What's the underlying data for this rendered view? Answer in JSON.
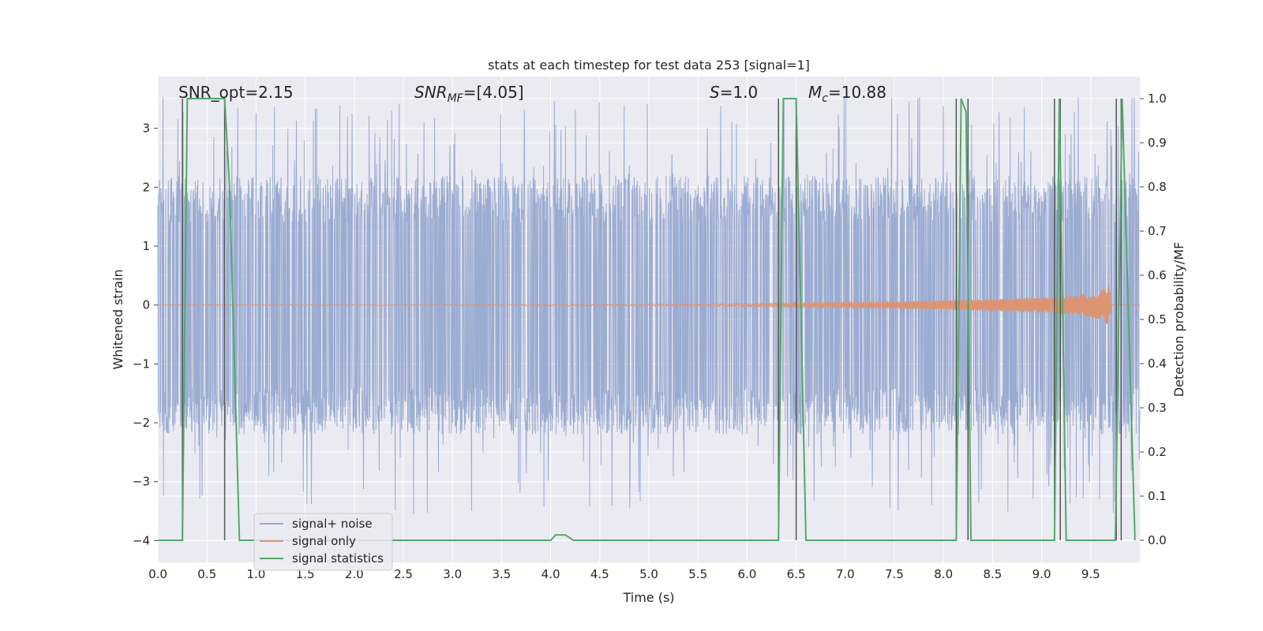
{
  "chart_data": {
    "type": "line",
    "title": "stats at each timestep for test data 253 [signal=1]",
    "xlabel": "Time (s)",
    "ylabel": "Whitened strain",
    "ylabel_right": "Detection probability/MF",
    "xlim": [
      0.0,
      10.0
    ],
    "ylim": [
      -4.37,
      3.88
    ],
    "ylim_right": [
      -0.05,
      1.05
    ],
    "x_ticks": [
      "0.0",
      "0.5",
      "1.0",
      "1.5",
      "2.0",
      "2.5",
      "3.0",
      "3.5",
      "4.0",
      "4.5",
      "5.0",
      "5.5",
      "6.0",
      "6.5",
      "7.0",
      "7.5",
      "8.0",
      "8.5",
      "9.0",
      "9.5"
    ],
    "y_ticks": [
      "−4",
      "−3",
      "−2",
      "−1",
      "0",
      "1",
      "2",
      "3"
    ],
    "y_ticks_right": [
      "0.0",
      "0.1",
      "0.2",
      "0.3",
      "0.4",
      "0.5",
      "0.6",
      "0.7",
      "0.8",
      "0.9",
      "1.0"
    ],
    "grid": true,
    "legend_position": "lower-left",
    "annotations": {
      "snr_opt": "SNR_opt=2.15",
      "snr_mf_main": "SNR",
      "snr_mf_sub": "MF",
      "snr_mf_value": "=[4.05]",
      "s_main": "S",
      "s_value": "=1.0",
      "mc_main": "M",
      "mc_sub": "c",
      "mc_value": "=10.88"
    },
    "series": [
      {
        "name": "signal+ noise",
        "color": "#97a9cf",
        "noise_band_approx": {
          "typical_abs_max": 2.2,
          "peak_abs_max": 3.55
        }
      },
      {
        "name": "signal only",
        "color": "#dd9473",
        "chirp_envelope_approx": {
          "t": [
            0.0,
            5.8,
            6.5,
            7.5,
            8.0,
            8.5,
            9.0,
            9.3,
            9.5,
            9.62,
            9.68,
            9.72
          ],
          "amp": [
            0.0,
            0.02,
            0.04,
            0.06,
            0.08,
            0.1,
            0.13,
            0.16,
            0.2,
            0.26,
            0.35,
            0.0
          ]
        }
      },
      {
        "name": "signal statistics",
        "color": "#55a868",
        "x": [
          0.0,
          0.25,
          0.3,
          0.68,
          0.73,
          0.83,
          4.0,
          4.05,
          4.15,
          4.23,
          6.32,
          6.37,
          6.5,
          6.6,
          8.13,
          8.18,
          8.23,
          8.28,
          9.13,
          9.18,
          9.25,
          9.75,
          9.82,
          9.95
        ],
        "y": [
          0.0,
          0.0,
          1.0,
          1.0,
          0.8,
          0.0,
          0.0,
          0.012,
          0.012,
          0.0,
          0.0,
          1.0,
          1.0,
          0.0,
          0.0,
          1.0,
          0.97,
          0.0,
          0.0,
          1.0,
          0.0,
          0.0,
          1.0,
          0.0
        ]
      }
    ],
    "vertical_markers_x": [
      0.25,
      0.68,
      6.32,
      6.5,
      8.13,
      8.25,
      9.13,
      9.19,
      9.76,
      9.81
    ],
    "colors": {
      "background": "#eaeaf2",
      "grid": "#ffffff",
      "marker_line": "#555555",
      "text": "#262626"
    }
  }
}
